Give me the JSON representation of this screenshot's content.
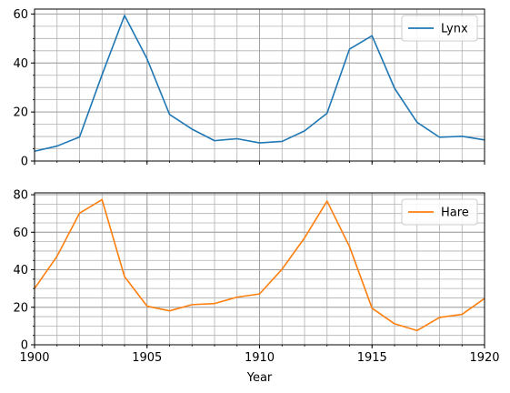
{
  "chart_data": [
    {
      "type": "line",
      "xlabel": "",
      "ylabel": "",
      "xlim": [
        1900,
        1920
      ],
      "ylim": [
        0,
        62
      ],
      "yticks": [
        0,
        20,
        40,
        60
      ],
      "yminor_step": 5,
      "xminor_step": 1,
      "grid": "major+minor",
      "show_xticklabels": false,
      "legend_position": "top-right",
      "x": [
        1900,
        1901,
        1902,
        1903,
        1904,
        1905,
        1906,
        1907,
        1908,
        1909,
        1910,
        1911,
        1912,
        1913,
        1914,
        1915,
        1916,
        1917,
        1918,
        1919,
        1920
      ],
      "series": [
        {
          "name": "Lynx",
          "color": "#1f77b4",
          "values": [
            4.0,
            6.1,
            9.8,
            35.2,
            59.4,
            41.7,
            19.0,
            13.0,
            8.3,
            9.1,
            7.4,
            8.0,
            12.3,
            19.5,
            45.7,
            51.1,
            29.7,
            15.8,
            9.7,
            10.1,
            8.6
          ]
        }
      ]
    },
    {
      "type": "line",
      "xlabel": "Year",
      "ylabel": "",
      "xlim": [
        1900,
        1920
      ],
      "ylim": [
        0,
        81
      ],
      "yticks": [
        0,
        20,
        40,
        60,
        80
      ],
      "yminor_step": 5,
      "xminor_step": 1,
      "grid": "major+minor",
      "show_xticklabels": true,
      "xticks": [
        1900,
        1905,
        1910,
        1915,
        1920
      ],
      "legend_position": "top-right",
      "x": [
        1900,
        1901,
        1902,
        1903,
        1904,
        1905,
        1906,
        1907,
        1908,
        1909,
        1910,
        1911,
        1912,
        1913,
        1914,
        1915,
        1916,
        1917,
        1918,
        1919,
        1920
      ],
      "series": [
        {
          "name": "Hare",
          "color": "#ff7f0e",
          "values": [
            30.0,
            47.2,
            70.2,
            77.4,
            36.3,
            20.6,
            18.1,
            21.4,
            22.0,
            25.4,
            27.1,
            40.3,
            57.0,
            76.6,
            52.3,
            19.5,
            11.2,
            7.6,
            14.6,
            16.2,
            24.7
          ]
        }
      ]
    }
  ]
}
